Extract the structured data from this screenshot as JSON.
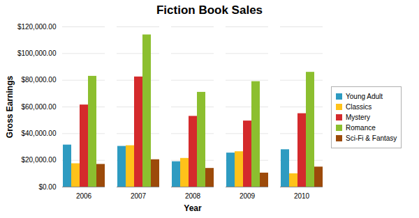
{
  "chart_data": {
    "type": "bar",
    "title": "Fiction Book Sales",
    "x_label": "Year",
    "y_label": "Gross Earnings",
    "categories": [
      "2006",
      "2007",
      "2008",
      "2009",
      "2010"
    ],
    "series": [
      {
        "name": "Young Adult",
        "color": "#2e9bc1",
        "values": [
          31500,
          30500,
          19000,
          25500,
          28000
        ]
      },
      {
        "name": "Classics",
        "color": "#ffc21a",
        "values": [
          17500,
          31000,
          21500,
          26500,
          10000
        ]
      },
      {
        "name": "Mystery",
        "color": "#d42a2c",
        "values": [
          61500,
          82500,
          53000,
          49500,
          55000
        ]
      },
      {
        "name": "Romance",
        "color": "#8cbf2f",
        "values": [
          83000,
          114000,
          71000,
          79000,
          86000
        ]
      },
      {
        "name": "Sci-Fi & Fantasy",
        "color": "#9c4a0a",
        "values": [
          17000,
          20500,
          14000,
          10500,
          15000
        ]
      }
    ],
    "ylim": [
      0,
      120000
    ],
    "yticks": [
      {
        "value": 0,
        "label": "$0.00"
      },
      {
        "value": 20000,
        "label": "$20,000.00"
      },
      {
        "value": 40000,
        "label": "$40,000.00"
      },
      {
        "value": 60000,
        "label": "$60,000.00"
      },
      {
        "value": 80000,
        "label": "$80,000.00"
      },
      {
        "value": 100000,
        "label": "$100,000.00"
      },
      {
        "value": 120000,
        "label": "$120,000.00"
      }
    ],
    "grid": true,
    "legend": "right"
  }
}
